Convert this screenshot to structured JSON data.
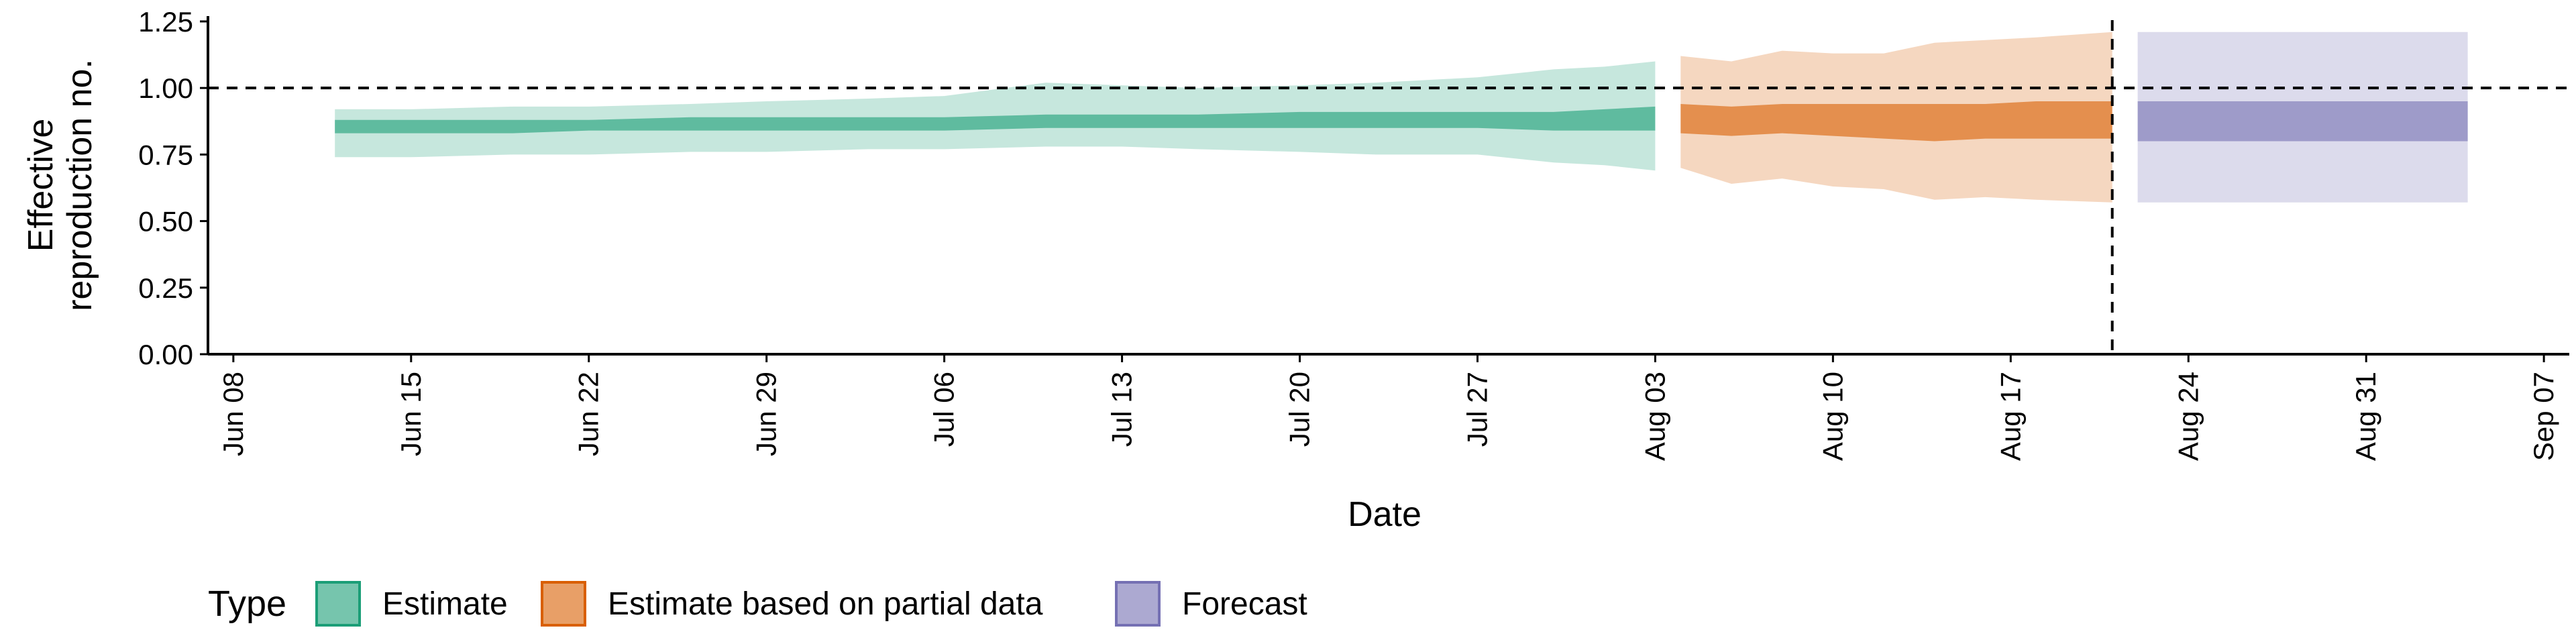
{
  "chart_data": {
    "type": "area",
    "title": "",
    "xlabel": "Date",
    "ylabel_lines": [
      "Effective",
      "reproduction no."
    ],
    "ylim": [
      0,
      1.27
    ],
    "xlim": [
      "2020-06-07",
      "2020-09-08"
    ],
    "y_ticks": [
      {
        "value": 0.0,
        "label": "0.00"
      },
      {
        "value": 0.25,
        "label": "0.25"
      },
      {
        "value": 0.5,
        "label": "0.50"
      },
      {
        "value": 0.75,
        "label": "0.75"
      },
      {
        "value": 1.0,
        "label": "1.00"
      },
      {
        "value": 1.25,
        "label": "1.25"
      }
    ],
    "x_ticks": [
      {
        "date": "2020-06-08",
        "label": "Jun 08"
      },
      {
        "date": "2020-06-15",
        "label": "Jun 15"
      },
      {
        "date": "2020-06-22",
        "label": "Jun 22"
      },
      {
        "date": "2020-06-29",
        "label": "Jun 29"
      },
      {
        "date": "2020-07-06",
        "label": "Jul 06"
      },
      {
        "date": "2020-07-13",
        "label": "Jul 13"
      },
      {
        "date": "2020-07-20",
        "label": "Jul 20"
      },
      {
        "date": "2020-07-27",
        "label": "Jul 27"
      },
      {
        "date": "2020-08-03",
        "label": "Aug 03"
      },
      {
        "date": "2020-08-10",
        "label": "Aug 10"
      },
      {
        "date": "2020-08-17",
        "label": "Aug 17"
      },
      {
        "date": "2020-08-24",
        "label": "Aug 24"
      },
      {
        "date": "2020-08-31",
        "label": "Aug 31"
      },
      {
        "date": "2020-09-07",
        "label": "Sep 07"
      }
    ],
    "reference_line_y": 1.0,
    "reference_line_x": "2020-08-21",
    "legend": {
      "title": "Type",
      "position": "bottom"
    },
    "series": [
      {
        "name": "Estimate",
        "fill_color": "#1b9e77",
        "outer_alpha": 0.25,
        "inner_alpha": 0.6,
        "points": [
          {
            "date": "2020-06-12",
            "lo90": 0.74,
            "lo50": 0.83,
            "hi50": 0.88,
            "hi90": 0.92
          },
          {
            "date": "2020-06-15",
            "lo90": 0.74,
            "lo50": 0.83,
            "hi50": 0.88,
            "hi90": 0.92
          },
          {
            "date": "2020-06-19",
            "lo90": 0.75,
            "lo50": 0.83,
            "hi50": 0.88,
            "hi90": 0.93
          },
          {
            "date": "2020-06-22",
            "lo90": 0.75,
            "lo50": 0.84,
            "hi50": 0.88,
            "hi90": 0.93
          },
          {
            "date": "2020-06-26",
            "lo90": 0.76,
            "lo50": 0.84,
            "hi50": 0.89,
            "hi90": 0.94
          },
          {
            "date": "2020-06-29",
            "lo90": 0.76,
            "lo50": 0.84,
            "hi50": 0.89,
            "hi90": 0.95
          },
          {
            "date": "2020-07-03",
            "lo90": 0.77,
            "lo50": 0.84,
            "hi50": 0.89,
            "hi90": 0.96
          },
          {
            "date": "2020-07-06",
            "lo90": 0.77,
            "lo50": 0.84,
            "hi50": 0.89,
            "hi90": 0.97
          },
          {
            "date": "2020-07-10",
            "lo90": 0.78,
            "lo50": 0.85,
            "hi50": 0.9,
            "hi90": 1.02
          },
          {
            "date": "2020-07-13",
            "lo90": 0.78,
            "lo50": 0.85,
            "hi50": 0.9,
            "hi90": 1.01
          },
          {
            "date": "2020-07-16",
            "lo90": 0.77,
            "lo50": 0.85,
            "hi50": 0.9,
            "hi90": 1.0
          },
          {
            "date": "2020-07-20",
            "lo90": 0.76,
            "lo50": 0.85,
            "hi50": 0.91,
            "hi90": 1.01
          },
          {
            "date": "2020-07-23",
            "lo90": 0.75,
            "lo50": 0.85,
            "hi50": 0.91,
            "hi90": 1.02
          },
          {
            "date": "2020-07-27",
            "lo90": 0.75,
            "lo50": 0.85,
            "hi50": 0.91,
            "hi90": 1.04
          },
          {
            "date": "2020-07-30",
            "lo90": 0.72,
            "lo50": 0.84,
            "hi50": 0.91,
            "hi90": 1.07
          },
          {
            "date": "2020-08-01",
            "lo90": 0.71,
            "lo50": 0.84,
            "hi50": 0.92,
            "hi90": 1.08
          },
          {
            "date": "2020-08-03",
            "lo90": 0.69,
            "lo50": 0.84,
            "hi50": 0.93,
            "hi90": 1.1
          }
        ]
      },
      {
        "name": "Estimate based on partial data",
        "fill_color": "#d95f02",
        "outer_alpha": 0.25,
        "inner_alpha": 0.6,
        "points": [
          {
            "date": "2020-08-04",
            "lo90": 0.7,
            "lo50": 0.83,
            "hi50": 0.94,
            "hi90": 1.12
          },
          {
            "date": "2020-08-06",
            "lo90": 0.64,
            "lo50": 0.82,
            "hi50": 0.93,
            "hi90": 1.1
          },
          {
            "date": "2020-08-08",
            "lo90": 0.66,
            "lo50": 0.83,
            "hi50": 0.94,
            "hi90": 1.14
          },
          {
            "date": "2020-08-10",
            "lo90": 0.63,
            "lo50": 0.82,
            "hi50": 0.94,
            "hi90": 1.13
          },
          {
            "date": "2020-08-12",
            "lo90": 0.62,
            "lo50": 0.81,
            "hi50": 0.94,
            "hi90": 1.13
          },
          {
            "date": "2020-08-14",
            "lo90": 0.58,
            "lo50": 0.8,
            "hi50": 0.94,
            "hi90": 1.17
          },
          {
            "date": "2020-08-16",
            "lo90": 0.59,
            "lo50": 0.81,
            "hi50": 0.94,
            "hi90": 1.18
          },
          {
            "date": "2020-08-18",
            "lo90": 0.58,
            "lo50": 0.81,
            "hi50": 0.95,
            "hi90": 1.19
          },
          {
            "date": "2020-08-21",
            "lo90": 0.57,
            "lo50": 0.81,
            "hi50": 0.95,
            "hi90": 1.21
          }
        ]
      },
      {
        "name": "Forecast",
        "fill_color": "#7570b3",
        "outer_alpha": 0.25,
        "inner_alpha": 0.6,
        "points": [
          {
            "date": "2020-08-22",
            "lo90": 0.57,
            "lo50": 0.8,
            "hi50": 0.95,
            "hi90": 1.21
          },
          {
            "date": "2020-09-04",
            "lo90": 0.57,
            "lo50": 0.8,
            "hi50": 0.95,
            "hi90": 1.21
          }
        ]
      }
    ]
  }
}
